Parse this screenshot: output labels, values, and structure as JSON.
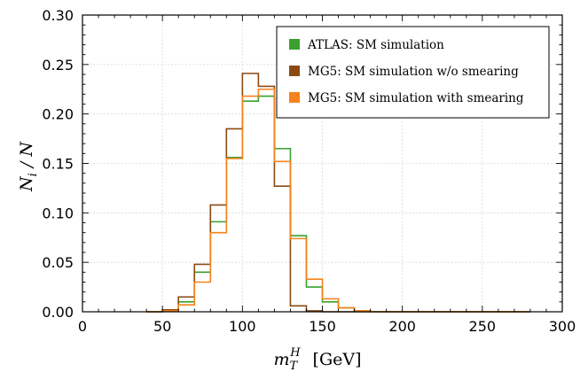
{
  "chart_data": {
    "type": "line",
    "step": true,
    "title": "",
    "xlabel": "m_T^H [GeV]",
    "xlabel_parts": {
      "base": "m",
      "sub": "T",
      "sup": "H",
      "unit": "[GeV]"
    },
    "ylabel": "N_i / N",
    "ylabel_parts": {
      "base": "N",
      "sub": "i",
      "rest": " / N"
    },
    "xlim": [
      0,
      300
    ],
    "ylim": [
      0,
      0.3
    ],
    "xticks": [
      0,
      50,
      100,
      150,
      200,
      250,
      300
    ],
    "xtick_labels": [
      "0",
      "50",
      "100",
      "150",
      "200",
      "250",
      "300"
    ],
    "yticks": [
      0.0,
      0.05,
      0.1,
      0.15,
      0.2,
      0.25,
      0.3
    ],
    "ytick_labels": [
      "0.00",
      "0.05",
      "0.10",
      "0.15",
      "0.20",
      "0.25",
      "0.30"
    ],
    "grid": true,
    "legend_position": "top-right",
    "bin_edges": [
      40,
      50,
      60,
      70,
      80,
      90,
      100,
      110,
      120,
      130,
      140,
      150,
      160,
      170,
      180,
      190,
      200,
      210,
      220,
      230,
      240,
      250,
      260,
      270,
      280
    ],
    "series": [
      {
        "name": "ATLAS: SM simulation",
        "color": "#3aa02e",
        "values": [
          0.0,
          0.002,
          0.01,
          0.04,
          0.091,
          0.156,
          0.213,
          0.218,
          0.165,
          0.077,
          0.025,
          0.01,
          0.004,
          0.001,
          0,
          0,
          0,
          0,
          0,
          0,
          0,
          0,
          0,
          0
        ]
      },
      {
        "name": "MG5: SM simulation w/o smearing",
        "color": "#8b4a12",
        "values": [
          0.0,
          0.002,
          0.015,
          0.048,
          0.108,
          0.185,
          0.241,
          0.228,
          0.127,
          0.006,
          0.001,
          0,
          0,
          0,
          0,
          0,
          0,
          0,
          0,
          0,
          0,
          0,
          0,
          0
        ]
      },
      {
        "name": "MG5: SM simulation with smearing",
        "color": "#f6831c",
        "values": [
          0.0,
          0.001,
          0.007,
          0.03,
          0.08,
          0.155,
          0.218,
          0.225,
          0.152,
          0.074,
          0.033,
          0.013,
          0.004,
          0.001,
          0,
          0,
          0,
          0,
          0,
          0,
          0,
          0,
          0,
          0
        ]
      }
    ]
  }
}
